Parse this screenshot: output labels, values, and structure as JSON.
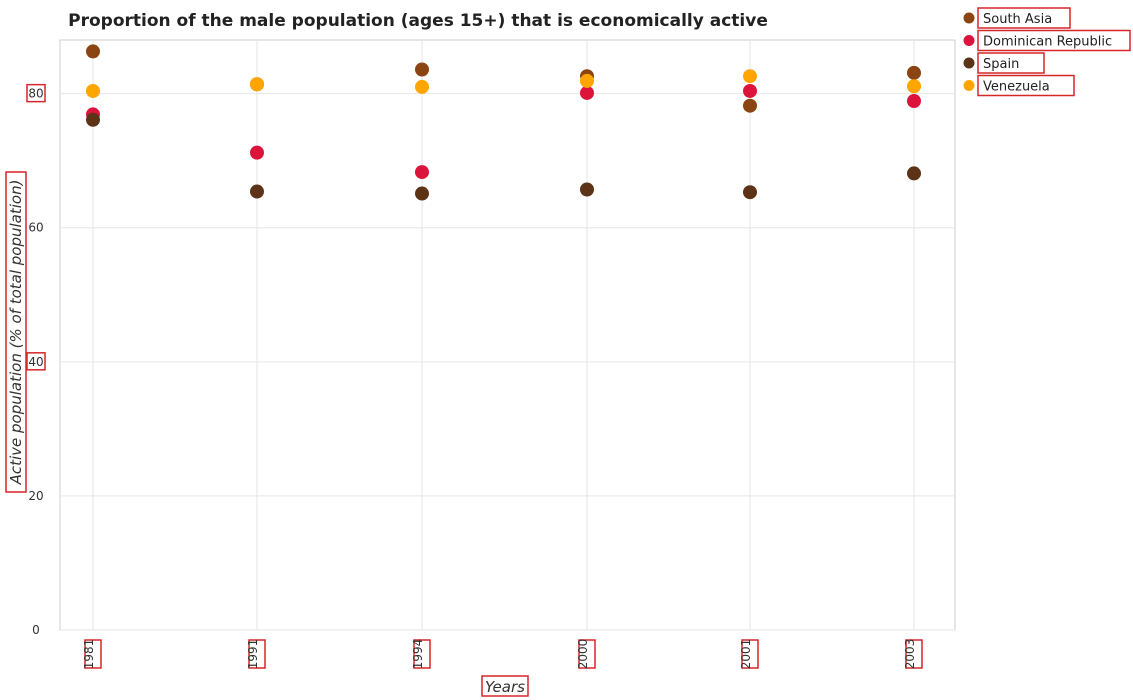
{
  "chart_data": {
    "type": "scatter",
    "title": "Proportion of the male population (ages 15+) that is economically active",
    "xlabel": "Years",
    "ylabel": "Active population (% of total population)",
    "categories": [
      "1981",
      "1991",
      "1994",
      "2000",
      "2001",
      "2003"
    ],
    "ylim": [
      0,
      88
    ],
    "yticks": [
      0,
      20,
      40,
      60,
      80
    ],
    "grid": true,
    "legend_position": "top-right",
    "series": [
      {
        "name": "South Asia",
        "color": "#8B4513",
        "values": [
          86.3,
          81.4,
          83.6,
          82.6,
          78.2,
          83.1
        ]
      },
      {
        "name": "Dominican Republic",
        "color": "#DC143C",
        "values": [
          76.9,
          71.2,
          68.3,
          80.1,
          80.4,
          78.9
        ]
      },
      {
        "name": "Spain",
        "color": "#5C3317",
        "values": [
          76.1,
          65.4,
          65.1,
          65.7,
          65.3,
          68.1
        ]
      },
      {
        "name": "Venezuela",
        "color": "#FFA500",
        "values": [
          80.4,
          81.4,
          81.0,
          81.9,
          82.6,
          81.1
        ]
      }
    ]
  }
}
